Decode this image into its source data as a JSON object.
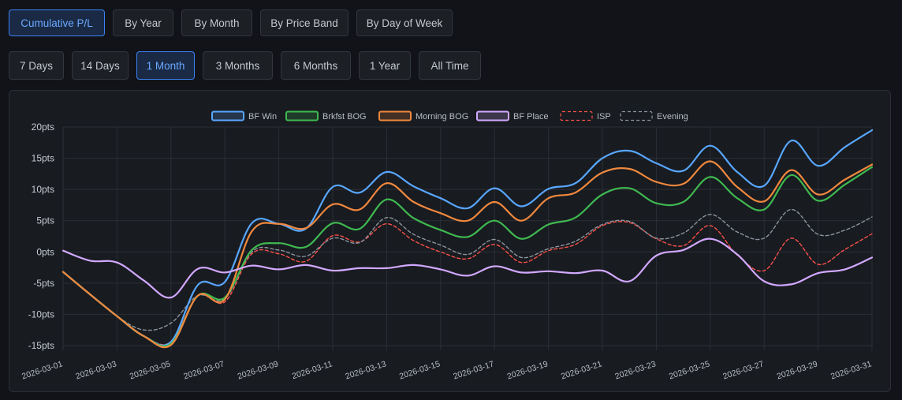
{
  "view_tabs": [
    {
      "label": "Cumulative P/L",
      "active": true
    },
    {
      "label": "By Year",
      "active": false
    },
    {
      "label": "By Month",
      "active": false
    },
    {
      "label": "By Price Band",
      "active": false
    },
    {
      "label": "By Day of Week",
      "active": false
    }
  ],
  "range_tabs": [
    {
      "label": "7 Days",
      "active": false
    },
    {
      "label": "14 Days",
      "active": false
    },
    {
      "label": "1 Month",
      "active": true
    },
    {
      "label": "3 Months",
      "active": false
    },
    {
      "label": "6 Months",
      "active": false
    },
    {
      "label": "1 Year",
      "active": false
    },
    {
      "label": "All Time",
      "active": false
    }
  ],
  "chart_data": {
    "type": "line",
    "title": "",
    "xlabel": "",
    "ylabel": "",
    "ylim": [
      -15,
      20
    ],
    "y_ticks": [
      20,
      15,
      10,
      5,
      0,
      -5,
      -10,
      -15
    ],
    "y_tick_suffix": "pts",
    "grid": true,
    "legend_position": "top-center",
    "x": [
      "2026-03-01",
      "2026-03-02",
      "2026-03-03",
      "2026-03-04",
      "2026-03-05",
      "2026-03-06",
      "2026-03-07",
      "2026-03-08",
      "2026-03-09",
      "2026-03-10",
      "2026-03-11",
      "2026-03-12",
      "2026-03-13",
      "2026-03-14",
      "2026-03-15",
      "2026-03-16",
      "2026-03-17",
      "2026-03-18",
      "2026-03-19",
      "2026-03-20",
      "2026-03-21",
      "2026-03-22",
      "2026-03-23",
      "2026-03-24",
      "2026-03-25",
      "2026-03-26",
      "2026-03-27",
      "2026-03-28",
      "2026-03-29",
      "2026-03-30",
      "2026-03-31"
    ],
    "x_tick_labels": [
      "2026-03-01",
      "2026-03-03",
      "2026-03-05",
      "2026-03-07",
      "2026-03-09",
      "2026-03-11",
      "2026-03-13",
      "2026-03-15",
      "2026-03-17",
      "2026-03-19",
      "2026-03-21",
      "2026-03-23",
      "2026-03-25",
      "2026-03-27",
      "2026-03-29",
      "2026-03-31"
    ],
    "series": [
      {
        "name": "BF Win",
        "color": "#58a6ff",
        "dashed": false,
        "values": [
          -3.2,
          -6.8,
          -10.3,
          -13.5,
          -14.4,
          -5.3,
          -4.8,
          4.6,
          4.5,
          3.7,
          10.4,
          9.5,
          12.8,
          10.5,
          8.6,
          7.0,
          10.2,
          7.3,
          10.1,
          11.0,
          15.0,
          16.2,
          14.2,
          13.0,
          17.0,
          12.8,
          10.6,
          17.8,
          13.8,
          16.8,
          19.5
        ]
      },
      {
        "name": "Brkfst BOG",
        "color": "#3fb950",
        "dashed": false,
        "values": [
          -3.2,
          -6.8,
          -10.3,
          -13.5,
          -14.7,
          -7.0,
          -7.3,
          0.3,
          1.4,
          0.8,
          4.6,
          3.7,
          8.4,
          5.4,
          3.5,
          2.4,
          5.0,
          2.1,
          4.4,
          5.5,
          9.2,
          10.2,
          7.8,
          8.0,
          12.0,
          8.6,
          6.8,
          12.3,
          8.2,
          10.8,
          13.6
        ]
      },
      {
        "name": "Morning BOG",
        "color": "#f0883e",
        "dashed": false,
        "values": [
          -3.2,
          -6.8,
          -10.3,
          -13.5,
          -14.9,
          -7.0,
          -7.6,
          3.3,
          4.5,
          3.8,
          7.6,
          6.8,
          11.0,
          8.0,
          6.2,
          5.0,
          8.0,
          5.0,
          8.6,
          9.5,
          12.7,
          13.3,
          11.2,
          10.9,
          14.5,
          10.4,
          8.1,
          13.1,
          9.2,
          11.6,
          14.0
        ]
      },
      {
        "name": "BF Place",
        "color": "#d2a8ff",
        "dashed": false,
        "values": [
          0.2,
          -1.4,
          -1.7,
          -4.6,
          -7.3,
          -2.7,
          -3.3,
          -2.2,
          -2.8,
          -2.1,
          -3.0,
          -2.6,
          -2.6,
          -2.1,
          -2.8,
          -3.8,
          -2.3,
          -3.3,
          -3.1,
          -3.4,
          -3.0,
          -4.7,
          -0.6,
          0.3,
          2.1,
          -0.4,
          -4.7,
          -5.2,
          -3.4,
          -2.8,
          -0.9
        ]
      },
      {
        "name": "ISP",
        "color": "#f85149",
        "dashed": true,
        "values": [
          -3.2,
          -6.8,
          -10.3,
          -13.5,
          -14.4,
          -7.0,
          -8.0,
          -0.3,
          -0.3,
          -1.5,
          2.6,
          1.6,
          4.5,
          1.8,
          0.0,
          -1.1,
          1.2,
          -1.7,
          0.2,
          1.2,
          4.2,
          4.7,
          2.1,
          1.0,
          4.2,
          -0.5,
          -3.0,
          2.2,
          -2.0,
          0.4,
          2.9
        ]
      },
      {
        "name": "Evening",
        "color": "#8b949e",
        "dashed": true,
        "values": [
          -3.2,
          -6.8,
          -10.3,
          -12.5,
          -11.4,
          -7.0,
          -7.5,
          0.0,
          0.3,
          -0.7,
          2.2,
          1.5,
          5.5,
          2.8,
          1.1,
          -0.4,
          2.0,
          -0.9,
          0.5,
          1.7,
          4.4,
          4.9,
          2.2,
          3.0,
          6.0,
          3.2,
          2.2,
          6.8,
          2.8,
          3.5,
          5.6
        ]
      }
    ]
  }
}
